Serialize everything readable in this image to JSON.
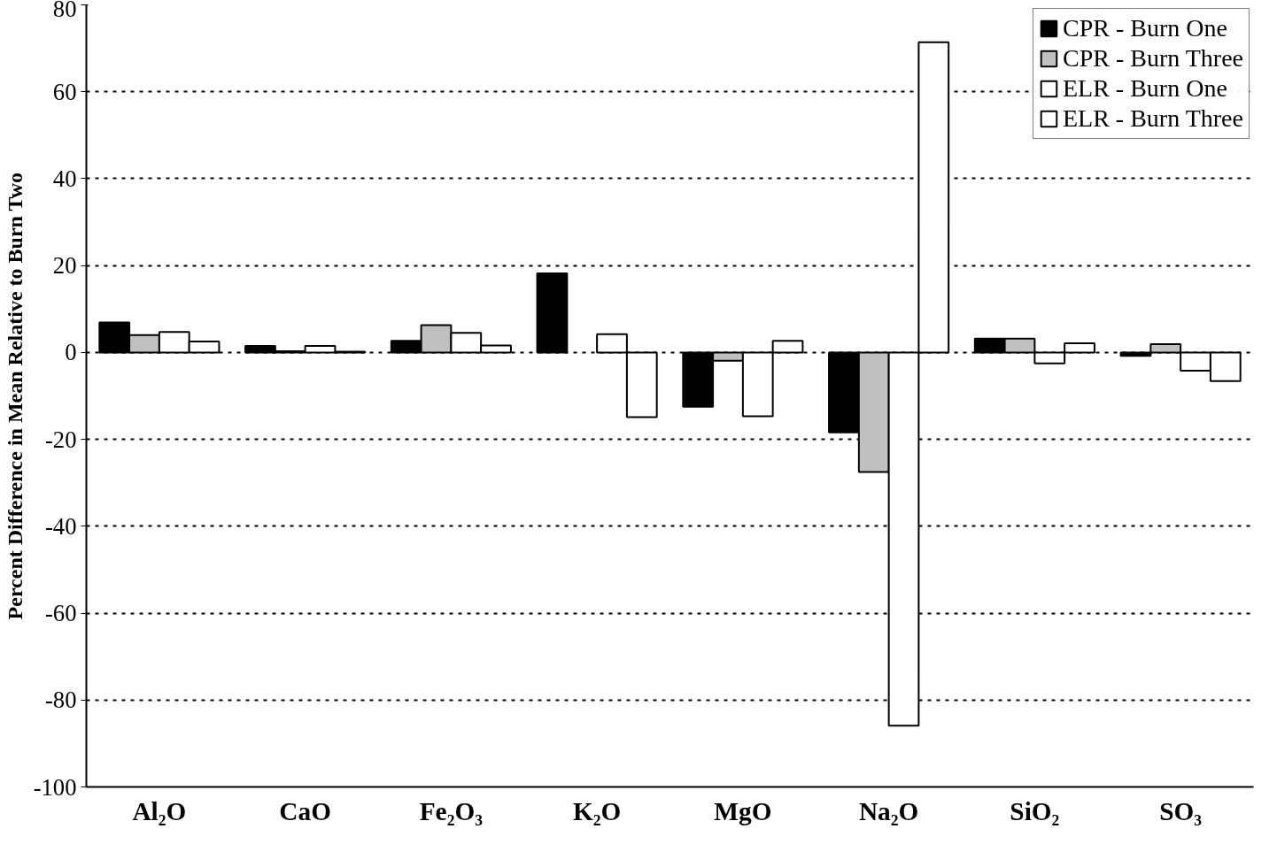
{
  "chart_data": {
    "type": "bar",
    "ylabel": "Percent Difference in Mean Relative to Burn Two",
    "categories": [
      "Al₂O",
      "CaO",
      "Fe₂O₃",
      "K₂O",
      "MgO",
      "Na₂O",
      "SiO₂",
      "SO₃"
    ],
    "series": [
      {
        "name": "CPR - Burn One",
        "color": "#000000",
        "values": [
          6.9,
          1.5,
          2.7,
          18.2,
          -12.5,
          -18.4,
          3.2,
          -0.8
        ]
      },
      {
        "name": "CPR - Burn Three",
        "color": "#c0c0c0",
        "values": [
          4.0,
          0.3,
          6.3,
          null,
          -1.9,
          -27.5,
          3.2,
          1.9
        ]
      },
      {
        "name": "ELR - Burn One",
        "color": "#ffffff",
        "values": [
          4.7,
          1.5,
          4.5,
          4.2,
          -14.7,
          -85.9,
          -2.5,
          -4.2
        ]
      },
      {
        "name": "ELR - Burn Three",
        "color": "#ffffff",
        "values": [
          2.5,
          0.2,
          1.6,
          -14.9,
          2.7,
          71.4,
          2.1,
          -6.6
        ]
      }
    ],
    "ylim": [
      -100,
      80
    ],
    "yticks": [
      -100,
      -80,
      -60,
      -40,
      -20,
      0,
      20,
      40,
      60,
      80
    ],
    "grid": "y",
    "legend": "top right"
  }
}
